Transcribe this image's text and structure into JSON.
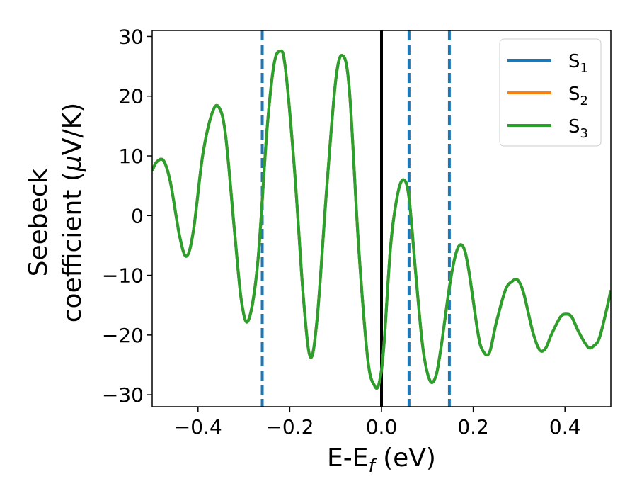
{
  "chart_data": {
    "type": "line",
    "xlabel": "E-E",
    "xlabel_sub": "f",
    "xlabel_unit": " (eV)",
    "ylabel_line1": "Seebeck",
    "ylabel_line2": "coefficient  (",
    "ylabel_mu": "μ",
    "ylabel_unit": "V/K)",
    "xlim": [
      -0.5,
      0.5
    ],
    "ylim": [
      -32,
      31
    ],
    "xticks": [
      -0.4,
      -0.2,
      0.0,
      0.2,
      0.4
    ],
    "xtick_labels": [
      "−0.4",
      "−0.2",
      "0.0",
      "0.2",
      "0.4"
    ],
    "yticks": [
      -30,
      -20,
      -10,
      0,
      10,
      20,
      30
    ],
    "ytick_labels": [
      "−30",
      "−20",
      "−10",
      "0",
      "10",
      "20",
      "30"
    ],
    "legend_position": "top-right",
    "series": [
      {
        "name": "S",
        "sub": "1",
        "color": "#1f77b4"
      },
      {
        "name": "S",
        "sub": "2",
        "color": "#ff7f0e"
      },
      {
        "name": "S",
        "sub": "3",
        "color": "#2ca02c"
      }
    ],
    "curve": {
      "x": [
        -0.5,
        -0.49,
        -0.475,
        -0.46,
        -0.44,
        -0.425,
        -0.41,
        -0.39,
        -0.37,
        -0.355,
        -0.34,
        -0.32,
        -0.305,
        -0.29,
        -0.27,
        -0.25,
        -0.235,
        -0.222,
        -0.21,
        -0.19,
        -0.17,
        -0.155,
        -0.14,
        -0.12,
        -0.1,
        -0.085,
        -0.07,
        -0.05,
        -0.03,
        -0.015,
        -0.005,
        0.005,
        0.02,
        0.035,
        0.048,
        0.06,
        0.075,
        0.09,
        0.105,
        0.118,
        0.13,
        0.15,
        0.165,
        0.178,
        0.19,
        0.21,
        0.22,
        0.235,
        0.25,
        0.27,
        0.285,
        0.297,
        0.31,
        0.33,
        0.345,
        0.358,
        0.37,
        0.39,
        0.403,
        0.415,
        0.43,
        0.45,
        0.463,
        0.475,
        0.49,
        0.5
      ],
      "y": [
        7.5,
        9.0,
        9.2,
        5.5,
        -3.5,
        -6.8,
        -2.5,
        10.0,
        17.0,
        18.2,
        13.5,
        -3.0,
        -14.5,
        -17.5,
        -8.0,
        14.0,
        25.0,
        27.5,
        25.0,
        8.0,
        -14.0,
        -23.7,
        -17.0,
        4.0,
        22.5,
        26.8,
        21.0,
        -5.0,
        -24.0,
        -28.5,
        -28.0,
        -22.0,
        -5.0,
        3.5,
        6.0,
        3.0,
        -10.0,
        -22.0,
        -27.5,
        -27.0,
        -22.0,
        -11.0,
        -5.7,
        -5.2,
        -9.0,
        -19.5,
        -22.5,
        -23.0,
        -18.0,
        -12.5,
        -11.0,
        -10.8,
        -13.0,
        -19.5,
        -22.5,
        -22.2,
        -20.0,
        -17.0,
        -16.5,
        -17.0,
        -19.5,
        -22.0,
        -21.8,
        -20.5,
        -16.0,
        -12.5
      ]
    },
    "vlines_dashed": [
      -0.26,
      0.06,
      0.148
    ],
    "vline_solid": 0.0,
    "vline_dashed_color": "#1f77b4",
    "vline_solid_color": "#000000"
  }
}
